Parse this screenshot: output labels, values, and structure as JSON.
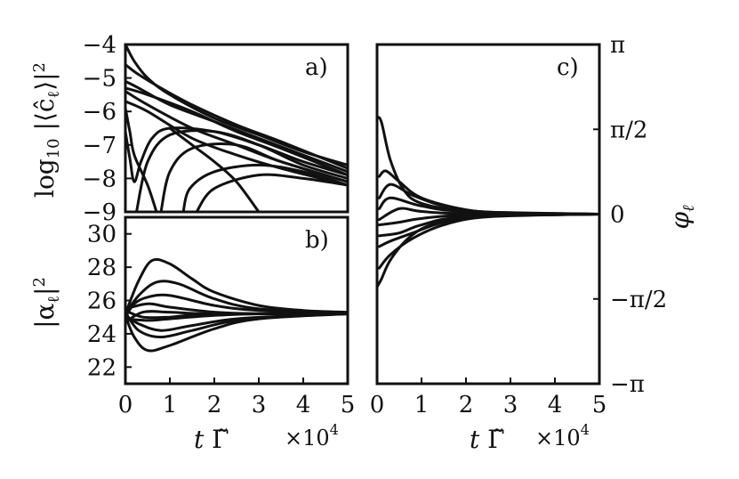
{
  "chart_data": [
    {
      "panel": "a)",
      "type": "line",
      "ylabel": "log10 |⟨ĉℓ⟩|²",
      "xlim": [
        0,
        5
      ],
      "ylim": [
        -9,
        -4
      ],
      "xticks": [],
      "yticks": [
        -9,
        -8,
        -7,
        -6,
        -5,
        -4
      ],
      "yticklabels": [
        "−9",
        "−8",
        "−7",
        "−6",
        "−5",
        "−4"
      ],
      "series": [
        {
          "points": [
            [
              0.0,
              -4.0
            ],
            [
              0.2,
              -4.5
            ],
            [
              0.5,
              -5.0
            ],
            [
              1.0,
              -5.5
            ],
            [
              2.0,
              -6.2
            ],
            [
              3.0,
              -6.7
            ],
            [
              4.0,
              -7.2
            ],
            [
              5.0,
              -7.6
            ]
          ]
        },
        {
          "points": [
            [
              0.0,
              -4.6
            ],
            [
              0.3,
              -4.9
            ],
            [
              0.8,
              -5.3
            ],
            [
              1.5,
              -5.8
            ],
            [
              2.5,
              -6.4
            ],
            [
              3.5,
              -6.9
            ],
            [
              5.0,
              -7.7
            ]
          ]
        },
        {
          "points": [
            [
              0.0,
              -5.1
            ],
            [
              0.3,
              -5.3
            ],
            [
              1.0,
              -5.8
            ],
            [
              2.0,
              -6.3
            ],
            [
              3.0,
              -6.8
            ],
            [
              4.0,
              -7.3
            ],
            [
              5.0,
              -7.8
            ]
          ]
        },
        {
          "points": [
            [
              0.0,
              -5.3
            ],
            [
              0.5,
              -5.5
            ],
            [
              1.5,
              -6.0
            ],
            [
              2.5,
              -6.6
            ],
            [
              3.5,
              -7.1
            ],
            [
              5.0,
              -7.9
            ]
          ]
        },
        {
          "points": [
            [
              0.0,
              -5.4
            ],
            [
              0.5,
              -5.8
            ],
            [
              1.5,
              -6.5
            ],
            [
              2.5,
              -7.0
            ],
            [
              3.5,
              -7.5
            ],
            [
              5.0,
              -8.1
            ]
          ]
        },
        {
          "points": [
            [
              0.0,
              -5.7
            ],
            [
              0.5,
              -6.0
            ],
            [
              1.5,
              -6.8
            ],
            [
              2.5,
              -7.3
            ],
            [
              3.5,
              -7.7
            ],
            [
              5.0,
              -8.2
            ]
          ]
        },
        {
          "points": [
            [
              0.0,
              -6.6
            ],
            [
              0.1,
              -7.4
            ],
            [
              0.2,
              -8.1
            ],
            [
              0.35,
              -7.5
            ],
            [
              0.6,
              -6.8
            ],
            [
              1.0,
              -6.5
            ],
            [
              2.0,
              -6.6
            ],
            [
              3.0,
              -7.0
            ],
            [
              4.0,
              -7.5
            ],
            [
              5.0,
              -7.9
            ]
          ]
        },
        {
          "points": [
            [
              0.0,
              -5.9
            ],
            [
              0.1,
              -6.6
            ],
            [
              0.2,
              -7.3
            ],
            [
              0.5,
              -8.2
            ],
            [
              0.7,
              -9.0
            ]
          ]
        },
        {
          "points": [
            [
              0.25,
              -9.0
            ],
            [
              0.5,
              -7.5
            ],
            [
              1.0,
              -6.7
            ],
            [
              2.0,
              -6.6
            ],
            [
              3.0,
              -7.0
            ],
            [
              4.0,
              -7.6
            ],
            [
              5.0,
              -8.0
            ]
          ]
        },
        {
          "points": [
            [
              0.8,
              -9.0
            ],
            [
              1.0,
              -7.8
            ],
            [
              1.5,
              -7.1
            ],
            [
              2.5,
              -7.0
            ],
            [
              3.5,
              -7.5
            ],
            [
              5.0,
              -8.1
            ]
          ]
        },
        {
          "points": [
            [
              1.3,
              -9.0
            ],
            [
              1.45,
              -8.3
            ],
            [
              2.0,
              -7.8
            ],
            [
              3.0,
              -7.6
            ],
            [
              4.0,
              -7.8
            ],
            [
              5.0,
              -8.2
            ]
          ]
        },
        {
          "points": [
            [
              1.6,
              -9.0
            ],
            [
              2.0,
              -8.3
            ],
            [
              3.0,
              -7.9
            ],
            [
              4.0,
              -8.0
            ],
            [
              5.0,
              -8.2
            ]
          ]
        },
        {
          "points": [
            [
              1.0,
              -6.5
            ],
            [
              1.5,
              -7.0
            ],
            [
              2.0,
              -7.5
            ],
            [
              2.5,
              -8.1
            ],
            [
              3.0,
              -9.0
            ]
          ]
        }
      ]
    },
    {
      "panel": "b)",
      "type": "line",
      "ylabel": "|αℓ|²",
      "xlabel": "t Γ̃",
      "xlim": [
        0,
        5
      ],
      "ylim": [
        21,
        31
      ],
      "xticks": [
        0,
        1,
        2,
        3,
        4,
        5
      ],
      "yticks": [
        22,
        24,
        26,
        28,
        30
      ],
      "xexponent": "×10⁴",
      "series": [
        {
          "points": [
            [
              0.0,
              25.2
            ],
            [
              0.3,
              27.2
            ],
            [
              0.6,
              28.4
            ],
            [
              1.0,
              28.2
            ],
            [
              1.5,
              27.3
            ],
            [
              2.0,
              26.5
            ],
            [
              3.0,
              25.7
            ],
            [
              4.0,
              25.4
            ],
            [
              5.0,
              25.3
            ]
          ]
        },
        {
          "points": [
            [
              0.0,
              25.2
            ],
            [
              0.3,
              26.3
            ],
            [
              0.7,
              27.1
            ],
            [
              1.2,
              27.0
            ],
            [
              2.0,
              26.1
            ],
            [
              3.0,
              25.5
            ],
            [
              5.0,
              25.2
            ]
          ]
        },
        {
          "points": [
            [
              0.0,
              25.0
            ],
            [
              0.2,
              25.8
            ],
            [
              0.5,
              26.2
            ],
            [
              1.0,
              26.3
            ],
            [
              2.0,
              25.7
            ],
            [
              3.0,
              25.4
            ],
            [
              5.0,
              25.2
            ]
          ]
        },
        {
          "points": [
            [
              0.0,
              25.5
            ],
            [
              0.5,
              25.8
            ],
            [
              1.0,
              25.6
            ],
            [
              2.0,
              25.3
            ],
            [
              3.0,
              25.2
            ],
            [
              5.0,
              25.2
            ]
          ]
        },
        {
          "points": [
            [
              0.0,
              24.9
            ],
            [
              0.5,
              24.8
            ],
            [
              1.0,
              24.9
            ],
            [
              2.0,
              25.1
            ],
            [
              3.0,
              25.2
            ],
            [
              5.0,
              25.2
            ]
          ]
        },
        {
          "points": [
            [
              0.0,
              25.1
            ],
            [
              0.3,
              24.6
            ],
            [
              0.8,
              24.2
            ],
            [
              1.5,
              24.5
            ],
            [
              2.5,
              24.9
            ],
            [
              4.0,
              25.1
            ],
            [
              5.0,
              25.2
            ]
          ]
        },
        {
          "points": [
            [
              0.0,
              25.3
            ],
            [
              0.3,
              24.2
            ],
            [
              0.8,
              23.8
            ],
            [
              1.5,
              24.2
            ],
            [
              2.5,
              24.8
            ],
            [
              4.0,
              25.1
            ],
            [
              5.0,
              25.2
            ]
          ]
        },
        {
          "points": [
            [
              0.0,
              25.1
            ],
            [
              0.2,
              23.8
            ],
            [
              0.5,
              23.0
            ],
            [
              1.0,
              23.3
            ],
            [
              2.0,
              24.3
            ],
            [
              3.0,
              24.9
            ],
            [
              5.0,
              25.2
            ]
          ]
        },
        {
          "points": [
            [
              0.0,
              25.4
            ],
            [
              0.4,
              25.0
            ],
            [
              1.0,
              25.0
            ],
            [
              2.0,
              25.2
            ],
            [
              5.0,
              25.2
            ]
          ]
        },
        {
          "points": [
            [
              0.0,
              24.7
            ],
            [
              0.4,
              25.3
            ],
            [
              1.0,
              25.3
            ],
            [
              2.0,
              25.2
            ],
            [
              5.0,
              25.2
            ]
          ]
        }
      ]
    },
    {
      "panel": "c)",
      "type": "line",
      "ylabel": "φℓ",
      "xlabel": "t Γ̃",
      "xlim": [
        0,
        5
      ],
      "ylim": [
        -3.1416,
        3.1416
      ],
      "xticks": [
        0,
        1,
        2,
        3,
        4,
        5
      ],
      "yticks": [
        -3.1416,
        -1.5708,
        0,
        1.5708,
        3.1416
      ],
      "yticklabels": [
        "−π",
        "−π/2",
        "0",
        "π/2",
        "π"
      ],
      "xexponent": "×10⁴",
      "series": [
        {
          "points": [
            [
              0.0,
              1.8
            ],
            [
              0.1,
              1.7
            ],
            [
              0.3,
              1.0
            ],
            [
              0.6,
              0.45
            ],
            [
              1.0,
              0.2
            ],
            [
              2.0,
              0.05
            ],
            [
              3.0,
              0.01
            ],
            [
              5.0,
              0.0
            ]
          ]
        },
        {
          "points": [
            [
              0.05,
              0.7
            ],
            [
              0.2,
              0.8
            ],
            [
              0.5,
              0.6
            ],
            [
              1.0,
              0.3
            ],
            [
              2.0,
              0.08
            ],
            [
              3.0,
              0.02
            ],
            [
              5.0,
              0.0
            ]
          ]
        },
        {
          "points": [
            [
              0.05,
              0.3
            ],
            [
              0.3,
              0.55
            ],
            [
              0.8,
              0.35
            ],
            [
              1.5,
              0.15
            ],
            [
              2.5,
              0.04
            ],
            [
              5.0,
              0.0
            ]
          ]
        },
        {
          "points": [
            [
              0.05,
              0.1
            ],
            [
              0.3,
              0.3
            ],
            [
              1.0,
              0.15
            ],
            [
              2.0,
              0.05
            ],
            [
              5.0,
              0.0
            ]
          ]
        },
        {
          "points": [
            [
              0.05,
              -0.1
            ],
            [
              0.5,
              0.1
            ],
            [
              1.0,
              0.05
            ],
            [
              2.0,
              0.01
            ],
            [
              5.0,
              0.0
            ]
          ]
        },
        {
          "points": [
            [
              0.05,
              -0.2
            ],
            [
              0.5,
              -0.15
            ],
            [
              1.0,
              -0.08
            ],
            [
              2.0,
              -0.02
            ],
            [
              5.0,
              0.0
            ]
          ]
        },
        {
          "points": [
            [
              0.05,
              -0.4
            ],
            [
              0.5,
              -0.35
            ],
            [
              1.0,
              -0.2
            ],
            [
              2.0,
              -0.05
            ],
            [
              5.0,
              0.0
            ]
          ]
        },
        {
          "points": [
            [
              0.05,
              -0.6
            ],
            [
              0.3,
              -0.5
            ],
            [
              0.8,
              -0.35
            ],
            [
              1.5,
              -0.15
            ],
            [
              2.5,
              -0.04
            ],
            [
              5.0,
              0.0
            ]
          ]
        },
        {
          "points": [
            [
              0.05,
              -1.0
            ],
            [
              0.3,
              -0.75
            ],
            [
              0.8,
              -0.45
            ],
            [
              1.5,
              -0.2
            ],
            [
              2.5,
              -0.05
            ],
            [
              5.0,
              0.0
            ]
          ]
        },
        {
          "points": [
            [
              0.0,
              -1.35
            ],
            [
              0.1,
              -1.2
            ],
            [
              0.3,
              -0.85
            ],
            [
              0.7,
              -0.45
            ],
            [
              1.2,
              -0.2
            ],
            [
              2.0,
              -0.06
            ],
            [
              3.0,
              -0.01
            ],
            [
              5.0,
              0.0
            ]
          ]
        }
      ]
    }
  ]
}
